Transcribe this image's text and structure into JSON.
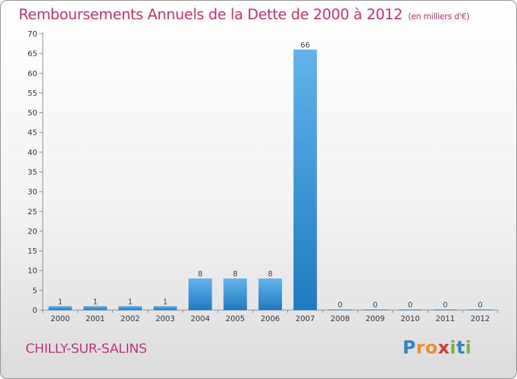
{
  "title": "Remboursements Annuels de la Dette de 2000 à 2012",
  "subtitle": "(en milliers d'€)",
  "commune": "CHILLY-SUR-SALINS",
  "logo": {
    "letters": [
      "P",
      "r",
      "o",
      "x",
      "i",
      "t",
      "i"
    ],
    "colors": [
      "#2a86c8",
      "#e8912c",
      "#e8912c",
      "#d63a2f",
      "#7cb53c",
      "#2a86c8",
      "#7cb53c"
    ]
  },
  "colors": {
    "title": "#c8327a",
    "bar_top": "#62b3eb",
    "bar_bottom": "#1f7bbf"
  },
  "chart_data": {
    "type": "bar",
    "categories": [
      "2000",
      "2001",
      "2002",
      "2003",
      "2004",
      "2005",
      "2006",
      "2007",
      "2008",
      "2009",
      "2010",
      "2011",
      "2012"
    ],
    "values": [
      1,
      1,
      1,
      1,
      8,
      8,
      8,
      66,
      0,
      0,
      0,
      0,
      0
    ],
    "ylim": [
      0,
      70
    ],
    "yticks": [
      0,
      5,
      10,
      15,
      20,
      25,
      30,
      35,
      40,
      45,
      50,
      55,
      60,
      65,
      70
    ],
    "grid": false
  }
}
